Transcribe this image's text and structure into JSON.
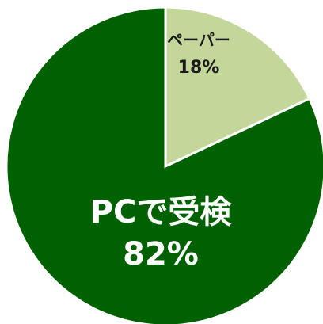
{
  "chart_data": {
    "type": "pie",
    "categories": [
      "ペーパー",
      "PCで受検"
    ],
    "values": [
      18,
      82
    ],
    "value_labels": [
      "18%",
      "82%"
    ],
    "colors": [
      "#c4d79b",
      "#006100"
    ],
    "label_colors": [
      "#1a1a1a",
      "#ffffff"
    ]
  }
}
